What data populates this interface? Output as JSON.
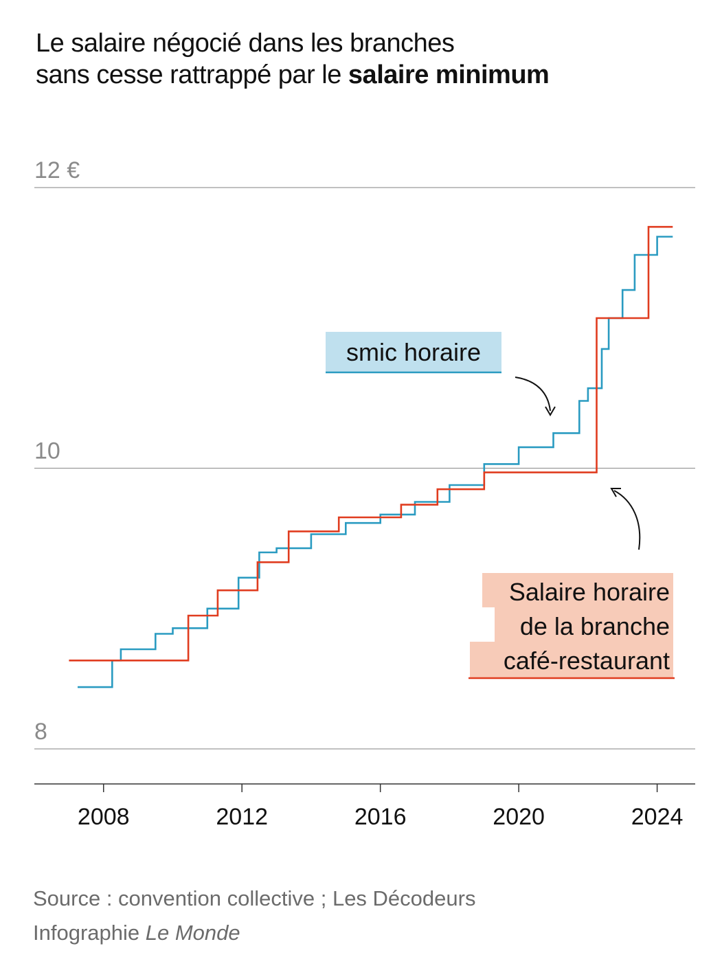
{
  "title": {
    "line1": "Le salaire négocié dans les branches",
    "line2_prefix": "sans cesse rattrappé par le ",
    "line2_bold": "salaire minimum"
  },
  "colors": {
    "smic": "#2a9bc1",
    "branche": "#e03c1f",
    "smic_label_bg": "#bfe0ee",
    "branche_label_bg": "#f7cbb8",
    "grid": "#9a9a9a",
    "axis_text": "#8a8a8a"
  },
  "chart_data": {
    "type": "line",
    "step": true,
    "xlim": [
      2006,
      2025.1
    ],
    "ylim": [
      8,
      12
    ],
    "y_ticks": [
      {
        "value": 12,
        "label": "12 €"
      },
      {
        "value": 10,
        "label": "10"
      },
      {
        "value": 8,
        "label": "8"
      }
    ],
    "x_ticks": [
      {
        "value": 2008,
        "label": "2008"
      },
      {
        "value": 2012,
        "label": "2012"
      },
      {
        "value": 2016,
        "label": "2016"
      },
      {
        "value": 2020,
        "label": "2020"
      },
      {
        "value": 2024,
        "label": "2024"
      }
    ],
    "series": [
      {
        "name": "smic horaire",
        "key": "smic",
        "points": [
          [
            2007.25,
            8.44
          ],
          [
            2008.25,
            8.63
          ],
          [
            2008.5,
            8.71
          ],
          [
            2009.5,
            8.82
          ],
          [
            2010.0,
            8.86
          ],
          [
            2011.0,
            9.0
          ],
          [
            2011.9,
            9.22
          ],
          [
            2012.0,
            9.22
          ],
          [
            2012.5,
            9.4
          ],
          [
            2013.0,
            9.43
          ],
          [
            2014.0,
            9.53
          ],
          [
            2015.0,
            9.61
          ],
          [
            2016.0,
            9.67
          ],
          [
            2017.0,
            9.76
          ],
          [
            2018.0,
            9.88
          ],
          [
            2019.0,
            10.03
          ],
          [
            2020.0,
            10.15
          ],
          [
            2021.0,
            10.25
          ],
          [
            2021.75,
            10.48
          ],
          [
            2022.0,
            10.57
          ],
          [
            2022.4,
            10.85
          ],
          [
            2022.6,
            11.07
          ],
          [
            2023.0,
            11.27
          ],
          [
            2023.35,
            11.52
          ],
          [
            2024.0,
            11.65
          ],
          [
            2024.45,
            11.65
          ]
        ]
      },
      {
        "name": "Salaire horaire de la branche café-restaurant",
        "key": "branche",
        "points": [
          [
            2007.0,
            8.63
          ],
          [
            2010.45,
            8.95
          ],
          [
            2011.3,
            9.13
          ],
          [
            2012.45,
            9.33
          ],
          [
            2013.35,
            9.55
          ],
          [
            2014.8,
            9.65
          ],
          [
            2016.6,
            9.74
          ],
          [
            2017.65,
            9.85
          ],
          [
            2019.0,
            9.97
          ],
          [
            2022.25,
            11.07
          ],
          [
            2023.75,
            11.72
          ],
          [
            2024.45,
            11.72
          ]
        ]
      }
    ],
    "annotations": {
      "smic": "smic horaire",
      "branche_lines": [
        "Salaire horaire",
        "de la branche",
        "café-restaurant"
      ]
    }
  },
  "source": {
    "text": "Source : convention collective ; Les Décodeurs",
    "credit_prefix": "Infographie ",
    "credit_italic": "Le Monde"
  }
}
